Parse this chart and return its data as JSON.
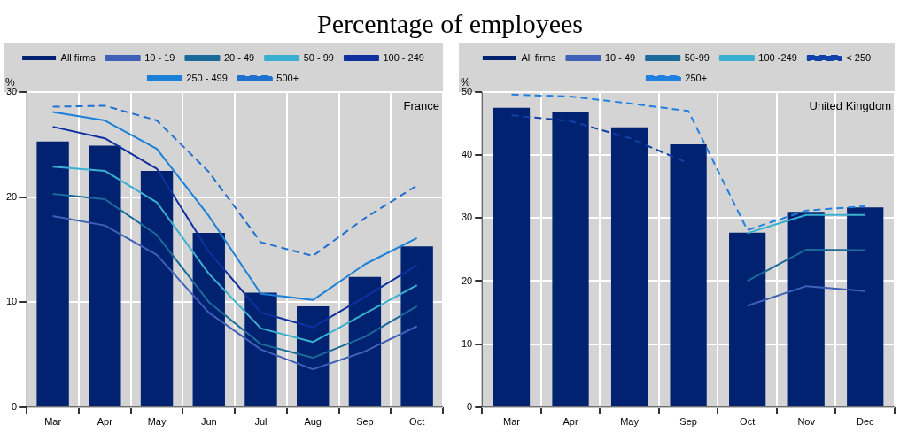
{
  "chart_data": [
    {
      "type": "bar",
      "title": "Percentage of employees",
      "ylabel": "%",
      "annotations": [
        "France"
      ],
      "legend": "top",
      "grid": true,
      "marker": "none",
      "categories": [
        "Mar",
        "Apr",
        "May",
        "Jun",
        "Jul",
        "Aug",
        "Sep",
        "Oct"
      ],
      "ylim": [
        0,
        30
      ],
      "yticks": [
        0,
        10,
        20,
        30
      ],
      "series": [
        {
          "name": "All firms",
          "color": "#002270",
          "values": [
            25.3,
            24.9,
            22.5,
            16.6,
            10.9,
            9.6,
            12.4,
            15.3
          ]
        },
        {
          "name": "10 - 19",
          "type": "line",
          "color": "#4060b8",
          "values": [
            18.2,
            17.3,
            14.5,
            9.0,
            5.5,
            3.6,
            5.3,
            7.7
          ]
        },
        {
          "name": "20 - 49",
          "type": "line",
          "color": "#1a6a9a",
          "values": [
            20.3,
            19.8,
            16.4,
            10.0,
            6.0,
            4.7,
            6.7,
            9.6
          ]
        },
        {
          "name": "50 - 99",
          "type": "line",
          "color": "#3ab0d0",
          "values": [
            22.9,
            22.5,
            19.5,
            12.7,
            7.5,
            6.2,
            8.9,
            11.6
          ]
        },
        {
          "name": "100 - 249",
          "type": "line",
          "color": "#1030a0",
          "values": [
            26.7,
            25.6,
            22.7,
            14.8,
            9.0,
            7.6,
            10.5,
            13.5
          ]
        },
        {
          "name": "250 - 499",
          "type": "line",
          "color": "#1a80d8",
          "values": [
            28.1,
            27.3,
            24.6,
            18.2,
            10.8,
            10.2,
            13.6,
            16.1
          ]
        },
        {
          "name": "500+",
          "type": "line",
          "line_style": "dashed",
          "color": "#2070d0",
          "values": [
            28.6,
            28.7,
            27.3,
            22.4,
            15.7,
            14.4,
            18.0,
            21.1
          ]
        }
      ]
    },
    {
      "type": "bar",
      "ylabel": "%",
      "annotations": [
        "United Kingdom"
      ],
      "legend": "top",
      "grid": true,
      "marker": "none",
      "categories": [
        "Mar",
        "Apr",
        "May",
        "Sep",
        "Oct",
        "Nov",
        "Dec"
      ],
      "ylim": [
        0,
        50
      ],
      "yticks": [
        0,
        10,
        20,
        30,
        40,
        50
      ],
      "series": [
        {
          "name": "All firms",
          "color": "#002270",
          "values": [
            47.5,
            46.8,
            44.4,
            41.7,
            27.7,
            31.0,
            31.7
          ]
        },
        {
          "name": "10 - 49",
          "type": "line",
          "color": "#4060b8",
          "values": [
            null,
            null,
            null,
            null,
            16.1,
            19.2,
            18.4
          ]
        },
        {
          "name": "50-99",
          "type": "line",
          "color": "#1a6a9a",
          "values": [
            null,
            null,
            null,
            null,
            20.0,
            25.0,
            24.9
          ]
        },
        {
          "name": "100 -249",
          "type": "line",
          "color": "#3ab0d0",
          "values": [
            null,
            null,
            null,
            null,
            27.6,
            30.5,
            30.5
          ]
        },
        {
          "name": "< 250",
          "type": "line",
          "line_style": "dashed",
          "color": "#1040a8",
          "values": [
            46.3,
            45.4,
            42.7,
            38.7,
            null,
            null,
            null
          ]
        },
        {
          "name": "250+",
          "type": "line",
          "line_style": "dashed",
          "color": "#2080e0",
          "values": [
            49.6,
            49.3,
            48.2,
            47.0,
            28.1,
            31.2,
            31.9
          ]
        }
      ]
    }
  ]
}
